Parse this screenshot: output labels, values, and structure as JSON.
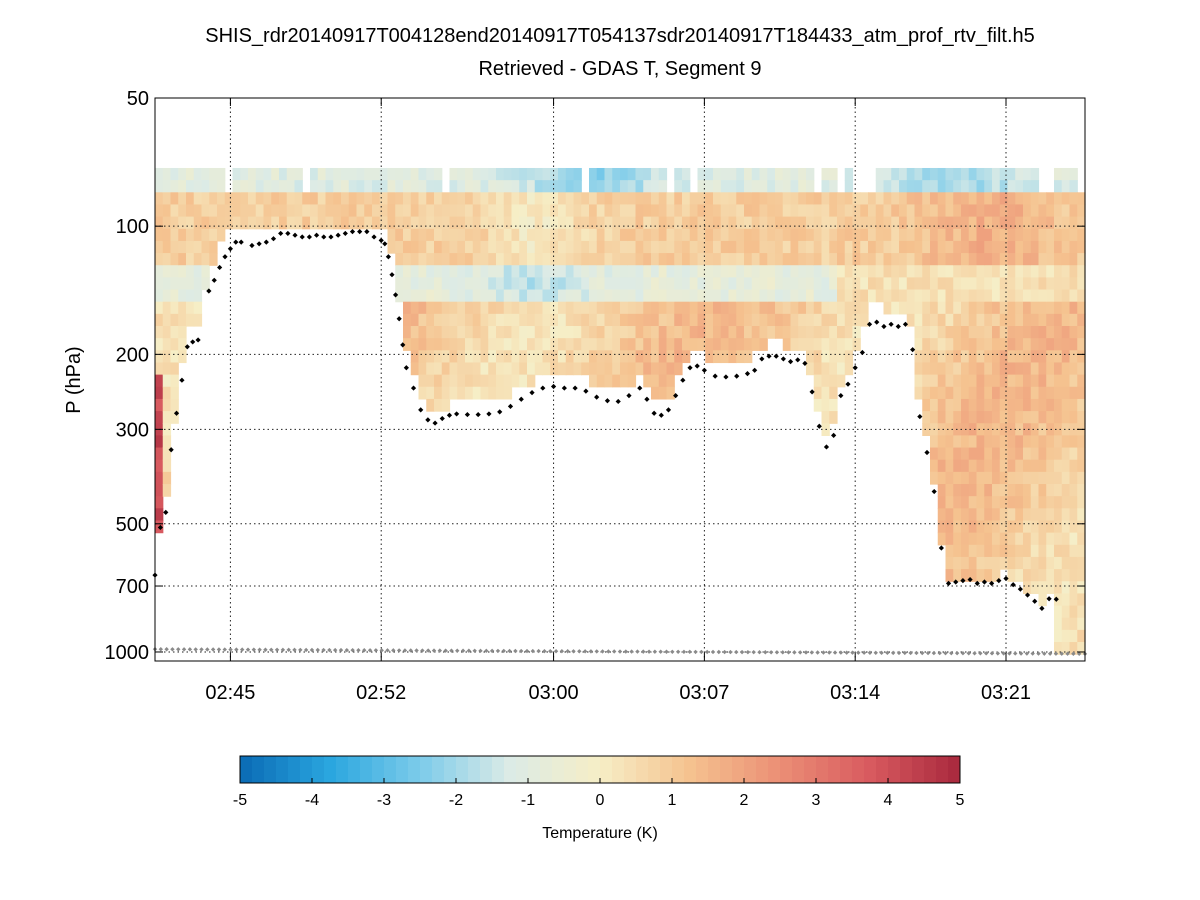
{
  "chart_data": {
    "type": "heatmap",
    "title": "SHIS_rdr20140917T004128end20140917T054137sdr20140917T184433_atm_prof_rtv_filt.h5",
    "subtitle": "Retrieved - GDAS T, Segment 9",
    "ylabel": "P (hPa)",
    "xlabel": "",
    "y_scale": "log",
    "y_inverted": true,
    "ylim": [
      50,
      1050
    ],
    "xlim": [
      "02:41:30",
      "03:24:40"
    ],
    "x_ticks": [
      "02:45",
      "02:52",
      "03:00",
      "03:07",
      "03:14",
      "03:21"
    ],
    "y_ticks": [
      "50",
      "100",
      "200",
      "300",
      "500",
      "700",
      "1000"
    ],
    "grid": true,
    "colorbar": {
      "label": "Temperature (K)",
      "range": [
        -5,
        5
      ],
      "ticks": [
        "-5",
        "-4",
        "-3",
        "-2",
        "-1",
        "0",
        "1",
        "2",
        "3",
        "4",
        "5"
      ],
      "colormap": "blue-white-red",
      "colors": [
        "#0a6ab4",
        "#2aa6df",
        "#7ccbea",
        "#dcebe6",
        "#f6eec6",
        "#f5c28f",
        "#eb8f75",
        "#d85a5f",
        "#a8283d"
      ]
    },
    "cloud_top_series": {
      "marker": "black-diamond",
      "points": [
        [
          "02:41:30",
          660
        ],
        [
          "02:41:45",
          510
        ],
        [
          "02:42:00",
          470
        ],
        [
          "02:42:15",
          335
        ],
        [
          "02:42:30",
          275
        ],
        [
          "02:42:45",
          230
        ],
        [
          "02:43:00",
          192
        ],
        [
          "02:43:15",
          187
        ],
        [
          "02:43:30",
          185
        ],
        [
          "02:44:00",
          142
        ],
        [
          "02:44:15",
          134
        ],
        [
          "02:44:30",
          125
        ],
        [
          "02:44:45",
          118
        ],
        [
          "02:45:00",
          113
        ],
        [
          "02:45:15",
          109
        ],
        [
          "02:45:30",
          109
        ],
        [
          "02:46:00",
          111
        ],
        [
          "02:46:20",
          110
        ],
        [
          "02:46:40",
          109
        ],
        [
          "02:47:00",
          107
        ],
        [
          "02:47:20",
          104
        ],
        [
          "02:47:40",
          104
        ],
        [
          "02:48:00",
          105
        ],
        [
          "02:48:20",
          106
        ],
        [
          "02:48:40",
          106
        ],
        [
          "02:49:00",
          105
        ],
        [
          "02:49:20",
          106
        ],
        [
          "02:49:40",
          106
        ],
        [
          "02:50:00",
          105
        ],
        [
          "02:50:20",
          104
        ],
        [
          "02:50:40",
          103
        ],
        [
          "02:51:00",
          103
        ],
        [
          "02:51:20",
          103
        ],
        [
          "02:51:40",
          106
        ],
        [
          "02:52:00",
          108
        ],
        [
          "02:52:10",
          110
        ],
        [
          "02:52:20",
          118
        ],
        [
          "02:52:30",
          130
        ],
        [
          "02:52:40",
          145
        ],
        [
          "02:52:50",
          165
        ],
        [
          "02:53:00",
          190
        ],
        [
          "02:53:10",
          215
        ],
        [
          "02:53:30",
          240
        ],
        [
          "02:53:50",
          270
        ],
        [
          "02:54:10",
          285
        ],
        [
          "02:54:30",
          290
        ],
        [
          "02:54:50",
          283
        ],
        [
          "02:55:10",
          278
        ],
        [
          "02:55:30",
          276
        ],
        [
          "02:56:00",
          277
        ],
        [
          "02:56:30",
          277
        ],
        [
          "02:57:00",
          276
        ],
        [
          "02:57:30",
          273
        ],
        [
          "02:58:00",
          265
        ],
        [
          "02:58:30",
          255
        ],
        [
          "02:59:00",
          246
        ],
        [
          "02:59:30",
          240
        ],
        [
          "03:00:00",
          238
        ],
        [
          "03:00:30",
          240
        ],
        [
          "03:01:00",
          240
        ],
        [
          "03:01:30",
          244
        ],
        [
          "03:02:00",
          252
        ],
        [
          "03:02:30",
          257
        ],
        [
          "03:03:00",
          258
        ],
        [
          "03:03:30",
          250
        ],
        [
          "03:04:00",
          240
        ],
        [
          "03:04:20",
          255
        ],
        [
          "03:04:40",
          275
        ],
        [
          "03:05:00",
          278
        ],
        [
          "03:05:20",
          270
        ],
        [
          "03:05:40",
          250
        ],
        [
          "03:06:00",
          230
        ],
        [
          "03:06:20",
          215
        ],
        [
          "03:06:40",
          213
        ],
        [
          "03:07:00",
          218
        ],
        [
          "03:07:30",
          225
        ],
        [
          "03:08:00",
          226
        ],
        [
          "03:08:30",
          225
        ],
        [
          "03:09:00",
          222
        ],
        [
          "03:09:20",
          218
        ],
        [
          "03:09:40",
          205
        ],
        [
          "03:10:00",
          202
        ],
        [
          "03:10:20",
          202
        ],
        [
          "03:10:40",
          205
        ],
        [
          "03:11:00",
          208
        ],
        [
          "03:11:20",
          206
        ],
        [
          "03:11:40",
          210
        ],
        [
          "03:12:00",
          245
        ],
        [
          "03:12:20",
          295
        ],
        [
          "03:12:40",
          330
        ],
        [
          "03:13:00",
          310
        ],
        [
          "03:13:20",
          250
        ],
        [
          "03:13:40",
          235
        ],
        [
          "03:14:00",
          215
        ],
        [
          "03:14:20",
          198
        ],
        [
          "03:14:40",
          170
        ],
        [
          "03:15:00",
          168
        ],
        [
          "03:15:20",
          172
        ],
        [
          "03:15:40",
          170
        ],
        [
          "03:16:00",
          172
        ],
        [
          "03:16:20",
          170
        ],
        [
          "03:16:40",
          195
        ],
        [
          "03:17:00",
          280
        ],
        [
          "03:17:20",
          340
        ],
        [
          "03:17:40",
          420
        ],
        [
          "03:18:00",
          570
        ],
        [
          "03:18:20",
          690
        ],
        [
          "03:18:40",
          685
        ],
        [
          "03:19:00",
          680
        ],
        [
          "03:19:20",
          676
        ],
        [
          "03:19:40",
          690
        ],
        [
          "03:20:00",
          685
        ],
        [
          "03:20:20",
          690
        ],
        [
          "03:20:40",
          680
        ],
        [
          "03:21:00",
          672
        ],
        [
          "03:21:20",
          695
        ],
        [
          "03:21:40",
          712
        ],
        [
          "03:22:00",
          735
        ],
        [
          "03:22:20",
          760
        ],
        [
          "03:22:40",
          790
        ],
        [
          "03:23:00",
          750
        ],
        [
          "03:23:20",
          752
        ]
      ]
    },
    "surface_series": {
      "marker": "grey-diamond",
      "pressure_start": 985,
      "pressure_end": 1010
    }
  }
}
